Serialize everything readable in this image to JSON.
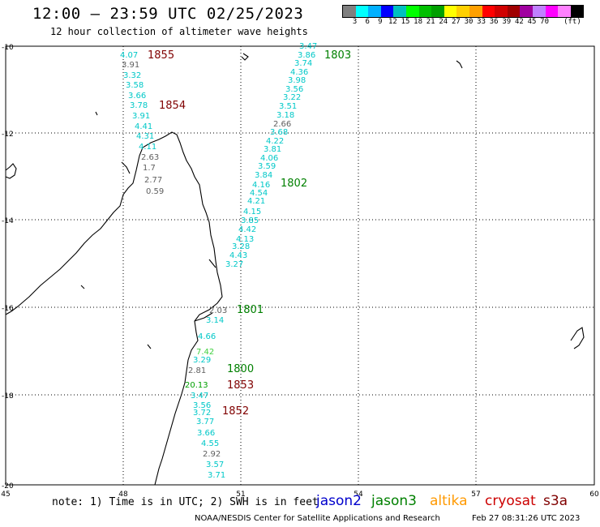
{
  "header": {
    "title": "12:00 – 23:59 UTC 02/25/2023",
    "subtitle": "12 hour collection of altimeter wave heights"
  },
  "colorbar": {
    "colors": [
      "#808080",
      "#00ffff",
      "#00b0ff",
      "#0000ff",
      "#00c0c0",
      "#00ff00",
      "#00c000",
      "#00a000",
      "#ffff00",
      "#ffd000",
      "#ffa000",
      "#ff0000",
      "#d00000",
      "#a00000",
      "#a000a0",
      "#c080ff",
      "#ff00ff",
      "#ff80ff",
      "#000000"
    ],
    "labels": [
      "3",
      "6",
      "9",
      "12",
      "15",
      "18",
      "21",
      "24",
      "27",
      "30",
      "33",
      "36",
      "39",
      "42",
      "45",
      "70"
    ],
    "unit": "(ft)"
  },
  "axes": {
    "lat_labels": [
      "-10",
      "-12",
      "-14",
      "-16",
      "-18",
      "-20"
    ],
    "lon_labels": [
      "45",
      "48",
      "51",
      "54",
      "57",
      "60"
    ]
  },
  "passes": [
    {
      "label": "1855",
      "color": "#800000",
      "points": [
        {
          "value": "4.07",
          "color": "#00c8c8"
        },
        {
          "value": "3.91",
          "color": "#606060"
        },
        {
          "value": "3.32",
          "color": "#00c8c8"
        },
        {
          "value": "3.58",
          "color": "#00c8c8"
        },
        {
          "value": "3.66",
          "color": "#00c8c8"
        },
        {
          "value": "3.78",
          "color": "#00c8c8"
        }
      ]
    },
    {
      "label": "1854",
      "color": "#800000",
      "points": [
        {
          "value": "3.91",
          "color": "#00c8c8"
        },
        {
          "value": "4.41",
          "color": "#00c8c8"
        },
        {
          "value": "4.31",
          "color": "#00c8c8"
        },
        {
          "value": "4.11",
          "color": "#00c8c8"
        },
        {
          "value": "2.63",
          "color": "#606060"
        },
        {
          "value": "1.7",
          "color": "#606060"
        },
        {
          "value": "2.77",
          "color": "#606060"
        },
        {
          "value": "0.59",
          "color": "#606060"
        }
      ]
    },
    {
      "label": "1803",
      "color": "#008000",
      "points": [
        {
          "value": "3.47",
          "color": "#00c8c8"
        },
        {
          "value": "3.86",
          "color": "#00c8c8"
        },
        {
          "value": "3.74",
          "color": "#00c8c8"
        },
        {
          "value": "4.36",
          "color": "#00c8c8"
        },
        {
          "value": "3.98",
          "color": "#00c8c8"
        },
        {
          "value": "3.56",
          "color": "#00c8c8"
        },
        {
          "value": "3.22",
          "color": "#00c8c8"
        },
        {
          "value": "3.51",
          "color": "#00c8c8"
        },
        {
          "value": "3.18",
          "color": "#00c8c8"
        },
        {
          "value": "2.66",
          "color": "#606060"
        },
        {
          "value": "3.68",
          "color": "#00c8c8"
        },
        {
          "value": "4.22",
          "color": "#00c8c8"
        },
        {
          "value": "3.81",
          "color": "#00c8c8"
        },
        {
          "value": "4.06",
          "color": "#00c8c8"
        },
        {
          "value": "3.59",
          "color": "#00c8c8"
        },
        {
          "value": "3.84",
          "color": "#00c8c8"
        }
      ]
    },
    {
      "label": "1802",
      "color": "#008000",
      "points": [
        {
          "value": "4.16",
          "color": "#00c8c8"
        },
        {
          "value": "4.54",
          "color": "#00c8c8"
        },
        {
          "value": "4.21",
          "color": "#00c8c8"
        },
        {
          "value": "4.15",
          "color": "#00c8c8"
        },
        {
          "value": "3.85",
          "color": "#00c8c8"
        },
        {
          "value": "4.42",
          "color": "#00c8c8"
        },
        {
          "value": "4.13",
          "color": "#00c8c8"
        },
        {
          "value": "3.28",
          "color": "#00c8c8"
        },
        {
          "value": "4.43",
          "color": "#00c8c8"
        },
        {
          "value": "3.27",
          "color": "#00c8c8"
        }
      ]
    },
    {
      "label": "1801",
      "color": "#008000",
      "points": [
        {
          "value": "2.03",
          "color": "#606060"
        },
        {
          "value": "3.14",
          "color": "#00c8c8"
        }
      ]
    },
    {
      "label": "1800",
      "color": "#008000",
      "points": [
        {
          "value": "4.66",
          "color": "#00c8c8"
        },
        {
          "value": "7.42",
          "color": "#40d040"
        },
        {
          "value": "3.29",
          "color": "#00c8c8"
        },
        {
          "value": "2.81",
          "color": "#606060"
        }
      ]
    },
    {
      "label": "1853",
      "color": "#800000",
      "points": [
        {
          "value": "20.13",
          "color": "#00a000"
        },
        {
          "value": "3.47",
          "color": "#00c8c8"
        }
      ]
    },
    {
      "label": "1852",
      "color": "#800000",
      "points": [
        {
          "value": "3.56",
          "color": "#00c8c8"
        },
        {
          "value": "3.72",
          "color": "#00c8c8"
        },
        {
          "value": "3.77",
          "color": "#00c8c8"
        },
        {
          "value": "3.66",
          "color": "#00c8c8"
        },
        {
          "value": "4.55",
          "color": "#00c8c8"
        },
        {
          "value": "2.92",
          "color": "#606060"
        },
        {
          "value": "3.57",
          "color": "#00c8c8"
        },
        {
          "value": "3.71",
          "color": "#00c8c8"
        }
      ]
    }
  ],
  "note": "note: 1) Time is in UTC; 2) SWH is in feet",
  "legend": [
    {
      "name": "jason2",
      "color": "#0000cc"
    },
    {
      "name": "jason3",
      "color": "#008000"
    },
    {
      "name": "altika",
      "color": "#ff9900"
    },
    {
      "name": "cryosat",
      "color": "#cc0000"
    },
    {
      "name": "s3a",
      "color": "#800000"
    }
  ],
  "footer": {
    "credit": "NOAA/NESDIS Center for Satellite Applications and Research",
    "timestamp": "Feb 27 08:31:26 UTC 2023"
  }
}
